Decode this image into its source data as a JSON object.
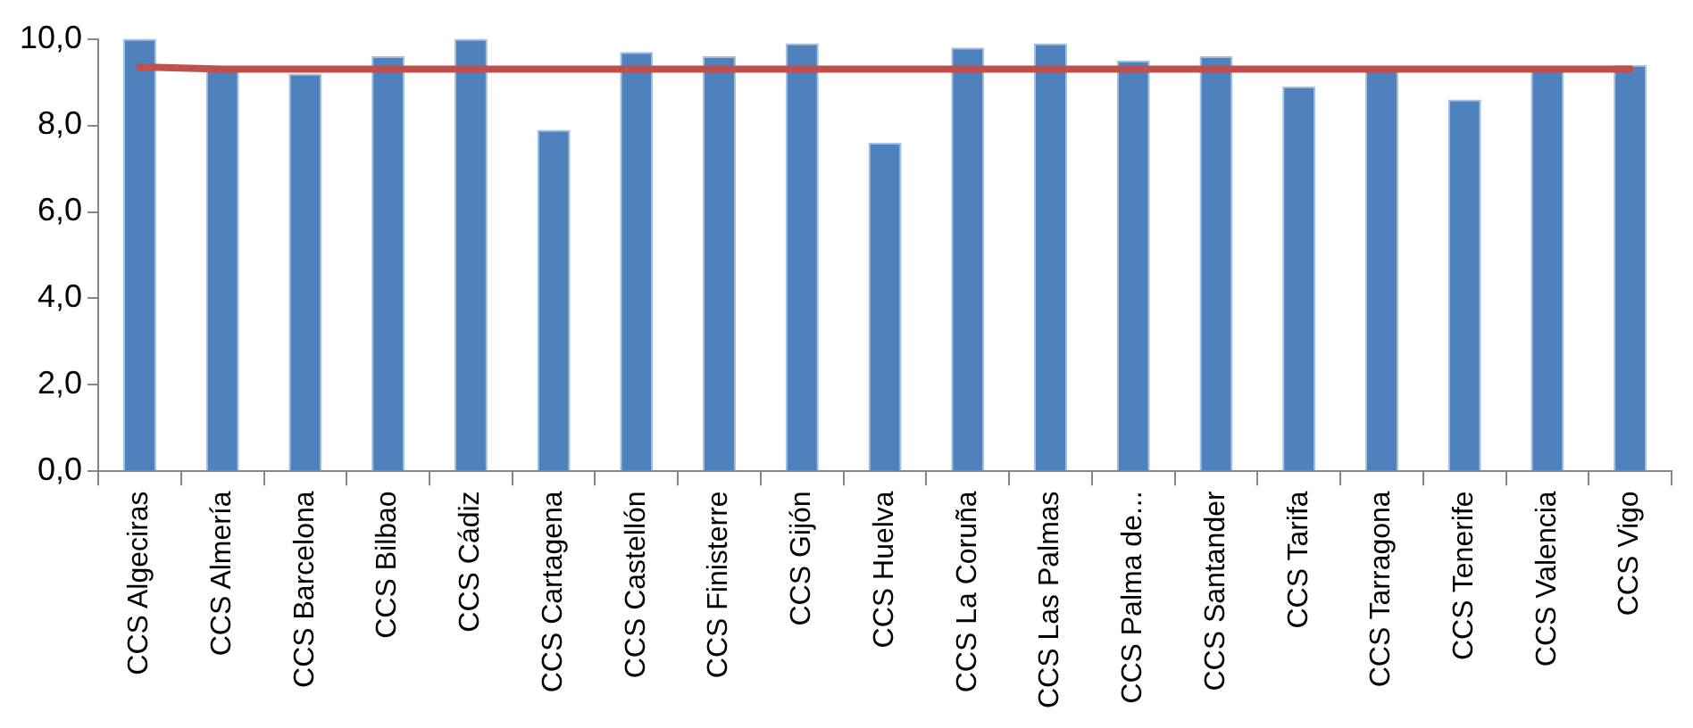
{
  "chart_data": {
    "type": "bar",
    "categories": [
      "CCS Algeciras",
      "CCS Almería",
      "CCS Barcelona",
      "CCS Bilbao",
      "CCS Cádiz",
      "CCS Cartagena",
      "CCS Castellón",
      "CCS Finisterre",
      "CCS Gijón",
      "CCS Huelva",
      "CCS La Coruña",
      "CCS Las Palmas",
      "CCS Palma de...",
      "CCS Santander",
      "CCS Tarifa",
      "CCS Tarragona",
      "CCS Tenerife",
      "CCS Valencia",
      "CCS Vigo"
    ],
    "series": [
      {
        "color": "#4f81bd",
        "values": [
          10.0,
          9.3,
          9.2,
          9.6,
          10.0,
          7.9,
          9.7,
          9.6,
          9.9,
          7.6,
          9.8,
          9.9,
          9.5,
          9.6,
          8.9,
          9.3,
          8.6,
          9.3,
          9.4
        ]
      },
      {
        "type": "line",
        "color": "#c0504d",
        "marker": "none",
        "values": [
          9.35,
          9.3,
          9.3,
          9.3,
          9.3,
          9.3,
          9.3,
          9.3,
          9.3,
          9.3,
          9.3,
          9.3,
          9.3,
          9.3,
          9.3,
          9.3,
          9.3,
          9.3,
          9.3
        ]
      }
    ],
    "ylim": [
      0,
      10
    ],
    "yticks": [
      {
        "value": 0,
        "label": "0,0"
      },
      {
        "value": 2,
        "label": "2,0"
      },
      {
        "value": 4,
        "label": "4,0"
      },
      {
        "value": 6,
        "label": "6,0"
      },
      {
        "value": 8,
        "label": "8,0"
      },
      {
        "value": 10,
        "label": "10,0"
      }
    ],
    "grid": false,
    "legend": false
  }
}
